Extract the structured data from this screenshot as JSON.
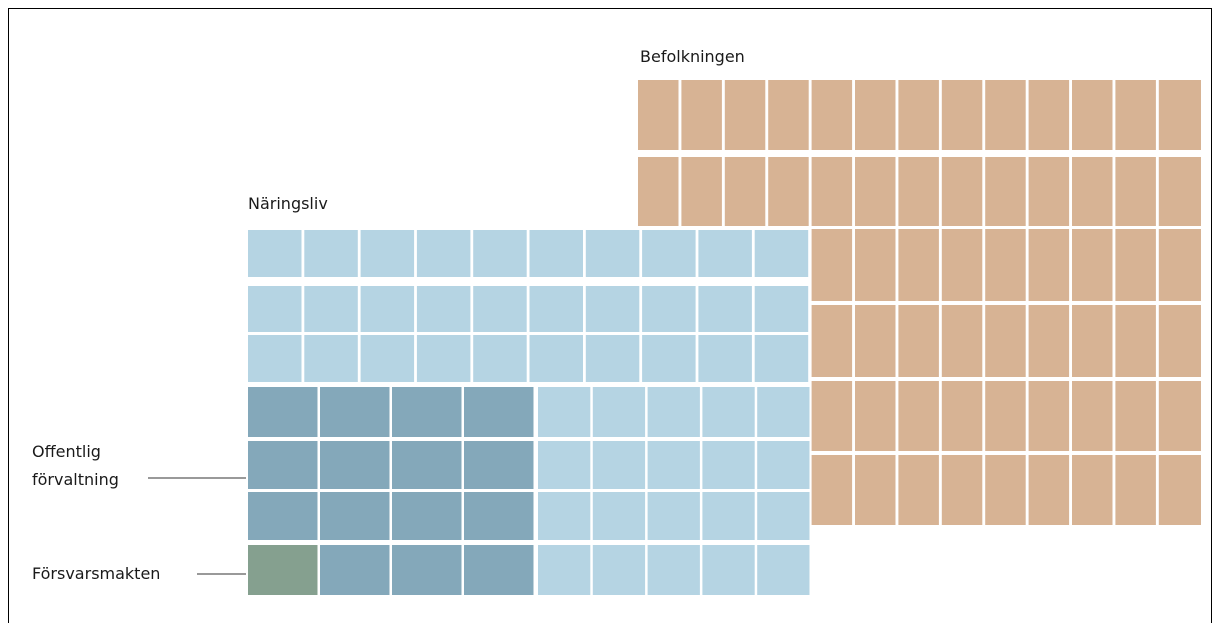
{
  "groups": [
    {
      "label": "Befolkningen"
    },
    {
      "label": "Näringsliv"
    },
    {
      "label": "Offentlig förvaltning"
    },
    {
      "label": "Försvarsmakten"
    }
  ]
}
